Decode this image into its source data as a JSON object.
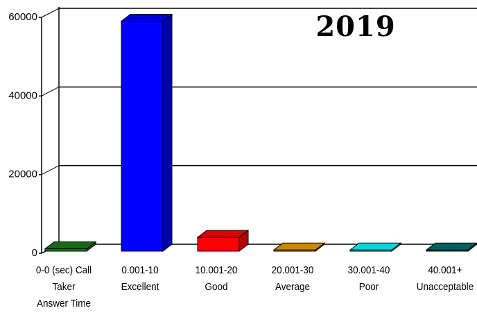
{
  "chart_data": {
    "type": "bar3d",
    "title": "2019",
    "categories": [
      [
        "0-0 (sec) Call",
        "Taker",
        "Answer Time"
      ],
      [
        "0.001-10",
        "Excellent"
      ],
      [
        "10.001-20",
        "Good"
      ],
      [
        "20.001-30",
        "Average"
      ],
      [
        "30.001-40",
        "Poor"
      ],
      [
        "40.001+",
        "Unacceptable"
      ]
    ],
    "values": [
      600,
      58500,
      3500,
      300,
      300,
      300
    ],
    "colors": [
      "#1a7d1a",
      "#0000ff",
      "#ff0000",
      "#f0a000",
      "#00ffff",
      "#007070"
    ],
    "ylim": [
      0,
      60000
    ],
    "yticks": [
      0,
      20000,
      40000,
      60000
    ],
    "grid": true
  }
}
